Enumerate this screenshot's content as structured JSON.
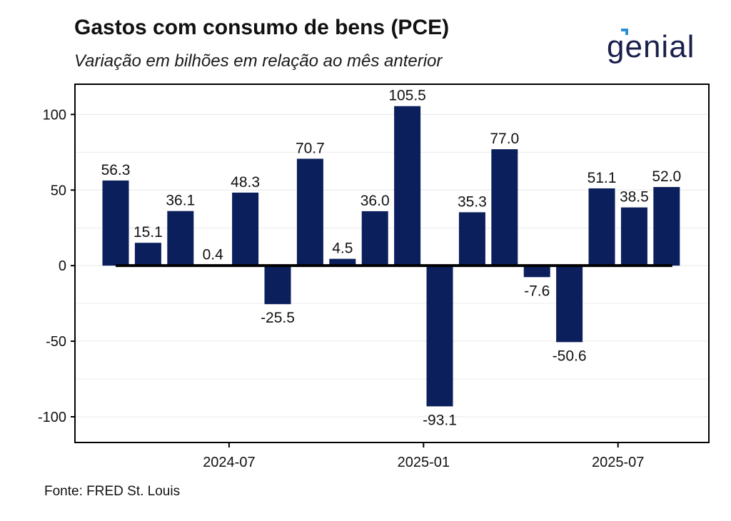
{
  "header": {
    "title": "Gastos com consumo de bens (PCE)",
    "subtitle": "Variação em bilhões em relação ao mês anterior"
  },
  "logo": {
    "text": "genial",
    "color": "#1a1f4d",
    "accent": "#2a8fd6"
  },
  "footer": {
    "source": "Fonte: FRED St. Louis"
  },
  "colors": {
    "bar": "#0b1f5c",
    "zero_line": "#000000",
    "grid": "#ececec",
    "frame": "#000000"
  },
  "chart_data": {
    "type": "bar",
    "title": "Gastos com consumo de bens (PCE)",
    "subtitle": "Variação em bilhões em relação ao mês anterior",
    "xlabel": "",
    "ylabel": "",
    "x": [
      "2024-04",
      "2024-05",
      "2024-06",
      "2024-07",
      "2024-08",
      "2024-09",
      "2024-10",
      "2024-11",
      "2024-12",
      "2025-01",
      "2025-02",
      "2025-03",
      "2025-04",
      "2025-05",
      "2025-06",
      "2025-07",
      "2025-08",
      "2025-09"
    ],
    "values": [
      56.3,
      15.1,
      36.1,
      0.4,
      48.3,
      -25.5,
      70.7,
      4.5,
      36.0,
      105.5,
      -93.1,
      35.3,
      77.0,
      -7.6,
      -50.6,
      51.1,
      38.5,
      52.0
    ],
    "data_labels": [
      "56.3",
      "15.1",
      "36.1",
      "0.4",
      "48.3",
      "-25.5",
      "70.7",
      "4.5",
      "36.0",
      "105.5",
      "-93.1",
      "35.3",
      "77.0",
      "-7.6",
      "-50.6",
      "51.1",
      "38.5",
      "52.0"
    ],
    "ylim": [
      -117,
      120
    ],
    "yticks": [
      -100,
      -50,
      0,
      50,
      100
    ],
    "ytick_labels": [
      "-100",
      "-50",
      "0",
      "50",
      "100"
    ],
    "xticks": [
      "2024-07",
      "2025-01",
      "2025-07"
    ],
    "xtick_labels": [
      "2024-07",
      "2025-01",
      "2025-07"
    ],
    "grid": true,
    "legend": "none"
  }
}
